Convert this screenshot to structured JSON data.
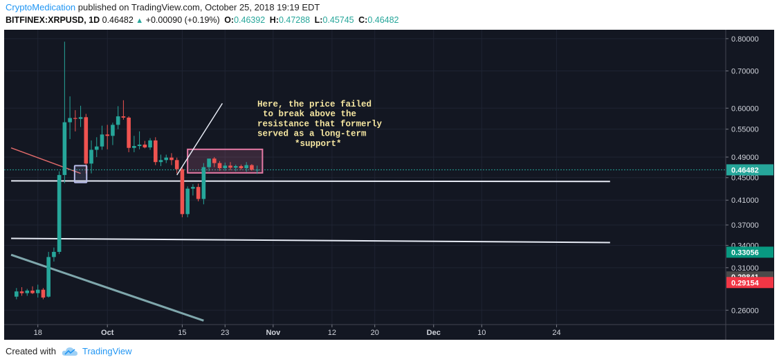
{
  "header": {
    "author": "CryptoMedication",
    "published_text": "published on TradingView.com, October 25, 2018 19:19 EDT",
    "symbol": "BITFINEX:XRPUSD, 1D",
    "last": "0.46482",
    "change": "+0.00090 (+0.19%)",
    "o_label": "O:",
    "o_value": "0.46392",
    "h_label": "H:",
    "h_value": "0.47288",
    "l_label": "L:",
    "l_value": "0.45745",
    "c_label": "C:",
    "c_value": "0.46482"
  },
  "footer": {
    "created_with": "Created with",
    "brand": "TradingView"
  },
  "colors": {
    "up": "#26a69a",
    "down": "#ef5350",
    "bg": "#131722",
    "resistance_box": "#e57aa5",
    "annotation": "#f5e6a1"
  },
  "chart_data": {
    "type": "candlestick",
    "log_scale": true,
    "ylim": [
      0.245,
      0.83
    ],
    "x_ticks": [
      {
        "label": "18",
        "day": 4
      },
      {
        "label": "Oct",
        "day": 17
      },
      {
        "label": "15",
        "day": 31
      },
      {
        "label": "23",
        "day": 39
      },
      {
        "label": "Nov",
        "day": 48
      },
      {
        "label": "12",
        "day": 59
      },
      {
        "label": "20",
        "day": 67
      },
      {
        "label": "Dec",
        "day": 78
      },
      {
        "label": "10",
        "day": 87
      },
      {
        "label": "24",
        "day": 101
      }
    ],
    "y_ticks": [
      "0.80000",
      "0.70000",
      "0.60000",
      "0.55000",
      "0.49000",
      "0.45000",
      "0.41000",
      "0.37000",
      "0.34000",
      "0.31000",
      "0.26000"
    ],
    "price_badges": [
      {
        "label": "0.46482",
        "value": 0.46482,
        "color": "#26a69a"
      },
      {
        "label": "0.33056",
        "value": 0.33056,
        "color": "#089981"
      },
      {
        "label": "0.29841",
        "value": 0.29841,
        "color": "#4a4a4a"
      },
      {
        "label": "0.29154",
        "value": 0.29154,
        "color": "#f23645"
      }
    ],
    "candles": [
      {
        "o": 0.275,
        "h": 0.285,
        "l": 0.272,
        "c": 0.281
      },
      {
        "o": 0.281,
        "h": 0.286,
        "l": 0.276,
        "c": 0.279
      },
      {
        "o": 0.279,
        "h": 0.284,
        "l": 0.276,
        "c": 0.282
      },
      {
        "o": 0.282,
        "h": 0.287,
        "l": 0.278,
        "c": 0.279
      },
      {
        "o": 0.279,
        "h": 0.289,
        "l": 0.274,
        "c": 0.283
      },
      {
        "o": 0.283,
        "h": 0.285,
        "l": 0.272,
        "c": 0.274
      },
      {
        "o": 0.275,
        "h": 0.331,
        "l": 0.274,
        "c": 0.324
      },
      {
        "o": 0.324,
        "h": 0.337,
        "l": 0.318,
        "c": 0.331
      },
      {
        "o": 0.331,
        "h": 0.462,
        "l": 0.328,
        "c": 0.455
      },
      {
        "o": 0.455,
        "h": 0.79,
        "l": 0.44,
        "c": 0.566
      },
      {
        "o": 0.566,
        "h": 0.63,
        "l": 0.528,
        "c": 0.576
      },
      {
        "o": 0.576,
        "h": 0.595,
        "l": 0.545,
        "c": 0.574
      },
      {
        "o": 0.574,
        "h": 0.606,
        "l": 0.555,
        "c": 0.578
      },
      {
        "o": 0.578,
        "h": 0.586,
        "l": 0.458,
        "c": 0.477
      },
      {
        "o": 0.477,
        "h": 0.525,
        "l": 0.458,
        "c": 0.505
      },
      {
        "o": 0.505,
        "h": 0.532,
        "l": 0.49,
        "c": 0.512
      },
      {
        "o": 0.512,
        "h": 0.558,
        "l": 0.505,
        "c": 0.538
      },
      {
        "o": 0.538,
        "h": 0.56,
        "l": 0.506,
        "c": 0.535
      },
      {
        "o": 0.535,
        "h": 0.565,
        "l": 0.515,
        "c": 0.56
      },
      {
        "o": 0.56,
        "h": 0.605,
        "l": 0.55,
        "c": 0.58
      },
      {
        "o": 0.58,
        "h": 0.62,
        "l": 0.572,
        "c": 0.577
      },
      {
        "o": 0.577,
        "h": 0.58,
        "l": 0.5,
        "c": 0.509
      },
      {
        "o": 0.509,
        "h": 0.535,
        "l": 0.5,
        "c": 0.513
      },
      {
        "o": 0.513,
        "h": 0.545,
        "l": 0.506,
        "c": 0.516
      },
      {
        "o": 0.516,
        "h": 0.524,
        "l": 0.508,
        "c": 0.51
      },
      {
        "o": 0.51,
        "h": 0.53,
        "l": 0.505,
        "c": 0.525
      },
      {
        "o": 0.525,
        "h": 0.532,
        "l": 0.474,
        "c": 0.48
      },
      {
        "o": 0.48,
        "h": 0.495,
        "l": 0.472,
        "c": 0.484
      },
      {
        "o": 0.484,
        "h": 0.495,
        "l": 0.478,
        "c": 0.489
      },
      {
        "o": 0.489,
        "h": 0.498,
        "l": 0.474,
        "c": 0.484
      },
      {
        "o": 0.484,
        "h": 0.489,
        "l": 0.458,
        "c": 0.466
      },
      {
        "o": 0.466,
        "h": 0.47,
        "l": 0.382,
        "c": 0.387
      },
      {
        "o": 0.387,
        "h": 0.434,
        "l": 0.382,
        "c": 0.43
      },
      {
        "o": 0.43,
        "h": 0.438,
        "l": 0.418,
        "c": 0.433
      },
      {
        "o": 0.433,
        "h": 0.439,
        "l": 0.408,
        "c": 0.412
      },
      {
        "o": 0.412,
        "h": 0.478,
        "l": 0.403,
        "c": 0.47
      },
      {
        "o": 0.47,
        "h": 0.484,
        "l": 0.462,
        "c": 0.487
      },
      {
        "o": 0.487,
        "h": 0.49,
        "l": 0.47,
        "c": 0.478
      },
      {
        "o": 0.478,
        "h": 0.482,
        "l": 0.463,
        "c": 0.468
      },
      {
        "o": 0.468,
        "h": 0.479,
        "l": 0.463,
        "c": 0.473
      },
      {
        "o": 0.473,
        "h": 0.48,
        "l": 0.464,
        "c": 0.469
      },
      {
        "o": 0.469,
        "h": 0.475,
        "l": 0.462,
        "c": 0.472
      },
      {
        "o": 0.472,
        "h": 0.475,
        "l": 0.465,
        "c": 0.468
      },
      {
        "o": 0.468,
        "h": 0.48,
        "l": 0.461,
        "c": 0.474
      },
      {
        "o": 0.474,
        "h": 0.476,
        "l": 0.463,
        "c": 0.465
      },
      {
        "o": 0.465,
        "h": 0.473,
        "l": 0.457,
        "c": 0.465
      }
    ],
    "drawings": {
      "support_lines": [
        {
          "from": {
            "day": -1,
            "price": 0.444
          },
          "to": {
            "day": 111,
            "price": 0.443
          }
        },
        {
          "from": {
            "day": -1,
            "price": 0.35
          },
          "to": {
            "day": 111,
            "price": 0.344
          }
        }
      ],
      "downtrend_line": {
        "from": {
          "day": -1,
          "price": 0.327
        },
        "to": {
          "day": 35,
          "price": 0.249
        }
      },
      "red_trend_line": {
        "from": {
          "day": -1,
          "price": 0.509
        },
        "to": {
          "day": 12,
          "price": 0.458
        }
      },
      "highlight_box": {
        "day_from": 11,
        "day_to": 13,
        "price_low": 0.441,
        "price_high": 0.473
      },
      "resistance_box": {
        "day_from": 32,
        "day_to": 46,
        "price_low": 0.459,
        "price_high": 0.506
      },
      "annotation_pointer": {
        "from": {
          "day": 30,
          "price": 0.455
        },
        "to": {
          "day": 38.5,
          "price": 0.612
        }
      }
    },
    "annotation_lines": [
      "Here, the price failed",
      "to break above the",
      "resistance that formerly",
      "served as a long-term",
      "*support*"
    ]
  }
}
